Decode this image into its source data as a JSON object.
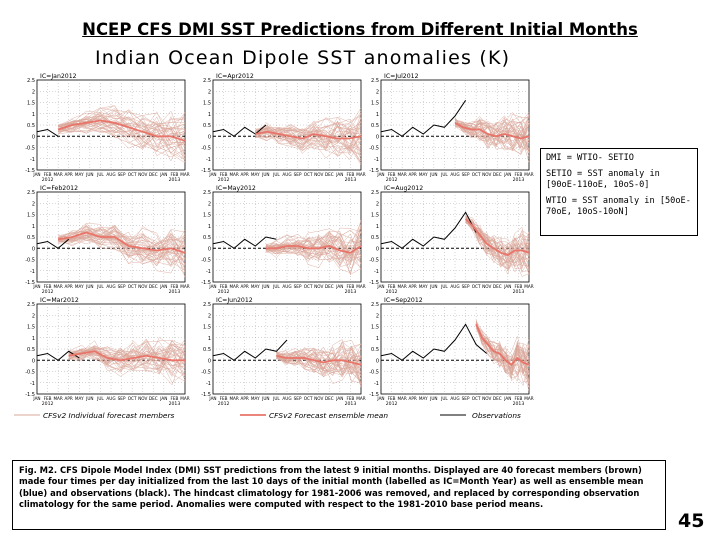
{
  "slide": {
    "title": "NCEP CFS DMI SST Predictions from Different Initial Months",
    "figure_heading": "Indian Ocean Dipole SST anomalies (K)",
    "page_number": "45"
  },
  "definitions": [
    "DMI = WTIO- SETIO",
    "SETIO = SST anomaly in [90oE-110oE, 10oS-0]",
    "WTIO = SST anomaly in [50oE-70oE, 10oS-10oN]"
  ],
  "caption": "Fig. M2. CFS Dipole Model Index (DMI) SST predictions from the latest 9 initial months. Displayed are 40 forecast members (brown) made four times per day initialized from the last 10 days of the initial month (labelled as IC=Month Year) as well as ensemble mean (blue) and observations (black). The hindcast climatology for 1981-2006 was removed, and replaced by corresponding observation climatology for the same period. Anomalies were computed with respect to the 1981-2010 base period means.",
  "legend": {
    "members": "CFSv2 Individual forecast members",
    "mean": "CFSv2 Forecast ensemble mean",
    "obs": "Observations"
  },
  "colors": {
    "members": "#d9a79a",
    "mean": "#e8746a",
    "obs": "#000000"
  },
  "chart_data": {
    "type": "line",
    "y_ticks": [
      "2.5",
      "2",
      "1.5",
      "1",
      "0.5",
      "0",
      "-0.5",
      "-1",
      "-1.5"
    ],
    "x_ticks": [
      "JAN",
      "FEB",
      "MAR",
      "APR",
      "MAY",
      "JUN",
      "JUL",
      "AUG",
      "SEP",
      "OCT",
      "NOV",
      "DEC",
      "JAN",
      "FEB",
      "MAR"
    ],
    "x_year_labels": [
      "2012",
      "2013"
    ],
    "ylim": [
      -1.5,
      2.5
    ],
    "months": [
      "2011-12",
      "2012-01",
      "2012-02",
      "2012-03",
      "2012-04",
      "2012-05",
      "2012-06",
      "2012-07",
      "2012-08",
      "2012-09",
      "2012-10",
      "2012-11",
      "2012-12",
      "2013-01",
      "2013-02"
    ],
    "observations": [
      0.2,
      0.3,
      0.0,
      0.4,
      0.1,
      0.5,
      0.4,
      0.9,
      1.6,
      0.7,
      0.3,
      0.1
    ],
    "panels": [
      {
        "ic_label": "IC=Jan2012",
        "ensemble_mean": [
          0.3,
          0.5,
          0.6,
          0.7,
          0.6,
          0.4,
          0.2,
          0.0,
          0.0,
          -0.2
        ]
      },
      {
        "ic_label": "IC=Apr2012",
        "ensemble_mean": [
          0.1,
          0.2,
          0.1,
          0.0,
          -0.1,
          0.1,
          0.0,
          -0.1,
          -0.1,
          0.0
        ]
      },
      {
        "ic_label": "IC=Jul2012",
        "ensemble_mean": [
          0.6,
          0.4,
          0.3,
          0.3,
          0.1,
          0.0,
          0.1,
          0.0,
          -0.1,
          0.0
        ]
      },
      {
        "ic_label": "IC=Feb2012",
        "ensemble_mean": [
          0.4,
          0.5,
          0.7,
          0.5,
          0.5,
          0.1,
          0.0,
          -0.1,
          0.0,
          -0.2
        ]
      },
      {
        "ic_label": "IC=May2012",
        "ensemble_mean": [
          0.0,
          0.0,
          0.1,
          0.1,
          0.0,
          0.0,
          0.1,
          -0.1,
          -0.2,
          0.1
        ]
      },
      {
        "ic_label": "IC=Aug2012",
        "ensemble_mean": [
          1.3,
          1.0,
          0.6,
          0.2,
          0.0,
          -0.2,
          -0.3,
          -0.1,
          -0.1,
          -0.2
        ]
      },
      {
        "ic_label": "IC=Mar2012",
        "ensemble_mean": [
          0.2,
          0.3,
          0.4,
          0.1,
          0.0,
          0.1,
          0.2,
          0.1,
          0.0,
          0.0
        ]
      },
      {
        "ic_label": "IC=Jun2012",
        "ensemble_mean": [
          0.2,
          0.1,
          0.1,
          0.1,
          0.0,
          -0.1,
          0.0,
          0.0,
          -0.1,
          -0.2
        ]
      },
      {
        "ic_label": "IC=Sep2012",
        "ensemble_mean": [
          1.6,
          1.0,
          0.7,
          0.4,
          0.3,
          0.0,
          -0.2,
          0.1,
          -0.1,
          -0.2
        ]
      }
    ],
    "legend_position": "bottom"
  }
}
